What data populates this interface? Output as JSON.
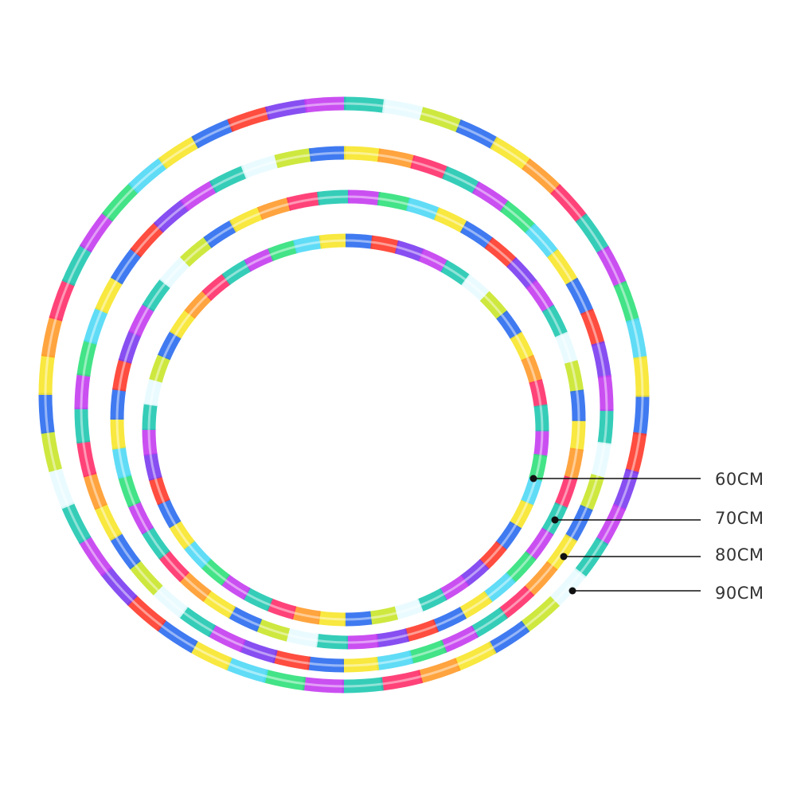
{
  "product": {
    "sizes": [
      {
        "label": "60CM"
      },
      {
        "label": "70CM"
      },
      {
        "label": "80CM"
      },
      {
        "label": "90CM"
      }
    ]
  },
  "colors": {
    "led_palette": [
      "#2b6cf0",
      "#4fd8f5",
      "#e8fbff",
      "#c43cf0",
      "#ff2f6a",
      "#ff3a2a",
      "#f7e62a",
      "#c9e62a",
      "#2fe07a",
      "#1fc8b0",
      "#7a3cf0",
      "#ff9a2a"
    ],
    "leader_line": "#111111",
    "label_text": "#333333"
  }
}
